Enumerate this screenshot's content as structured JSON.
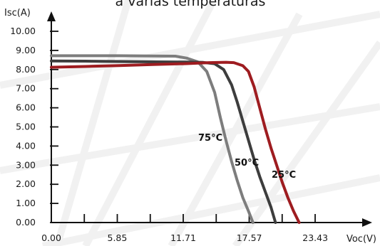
{
  "chart_data": {
    "type": "line",
    "title": "a varias temperaturas",
    "xlabel": "Voc(V)",
    "ylabel": "Isc(A)",
    "xlim": [
      0,
      26.5
    ],
    "ylim": [
      0,
      10
    ],
    "x_ticks": [
      0.0,
      5.85,
      11.71,
      17.57,
      23.43
    ],
    "x_tick_labels": [
      "0.00",
      "5.85",
      "11.71",
      "17.57",
      "23.43"
    ],
    "y_ticks": [
      0,
      1,
      2,
      3,
      4,
      5,
      6,
      7,
      8,
      9,
      10
    ],
    "y_tick_labels": [
      "0.00",
      "1.00",
      "2.00",
      "3.00",
      "4.00",
      "5.00",
      "6.00",
      "7.00",
      "8.00",
      "9.00",
      "10.00"
    ],
    "grid": false,
    "series": [
      {
        "name": "75°C",
        "color": "#7d7d7d",
        "x": [
          0.0,
          3.0,
          6.0,
          9.0,
          11.0,
          12.0,
          13.0,
          13.8,
          14.5,
          15.0,
          15.5,
          16.0,
          16.5,
          17.0,
          17.5,
          17.9
        ],
        "y": [
          8.72,
          8.72,
          8.72,
          8.71,
          8.7,
          8.6,
          8.4,
          7.9,
          6.8,
          5.5,
          4.3,
          3.2,
          2.2,
          1.3,
          0.6,
          0.0
        ]
      },
      {
        "name": "50°C",
        "color": "#3d3d3d",
        "x": [
          0.0,
          3.0,
          6.0,
          9.0,
          12.0,
          13.5,
          14.5,
          15.3,
          16.0,
          16.5,
          17.0,
          17.5,
          18.0,
          18.5,
          19.0,
          19.5,
          19.9
        ],
        "y": [
          8.45,
          8.44,
          8.42,
          8.4,
          8.39,
          8.37,
          8.3,
          8.0,
          7.2,
          6.3,
          5.3,
          4.3,
          3.3,
          2.4,
          1.6,
          0.8,
          0.0
        ]
      },
      {
        "name": "25°C",
        "color": "#9e1c20",
        "x": [
          0.0,
          3.0,
          6.0,
          9.0,
          12.0,
          14.0,
          15.5,
          16.2,
          17.0,
          17.5,
          18.0,
          18.5,
          19.0,
          19.5,
          20.0,
          20.5,
          21.0,
          21.5,
          22.0
        ],
        "y": [
          8.12,
          8.16,
          8.21,
          8.26,
          8.31,
          8.36,
          8.38,
          8.36,
          8.2,
          7.9,
          7.1,
          6.0,
          4.9,
          3.9,
          3.0,
          2.1,
          1.3,
          0.6,
          0.0
        ]
      }
    ]
  }
}
